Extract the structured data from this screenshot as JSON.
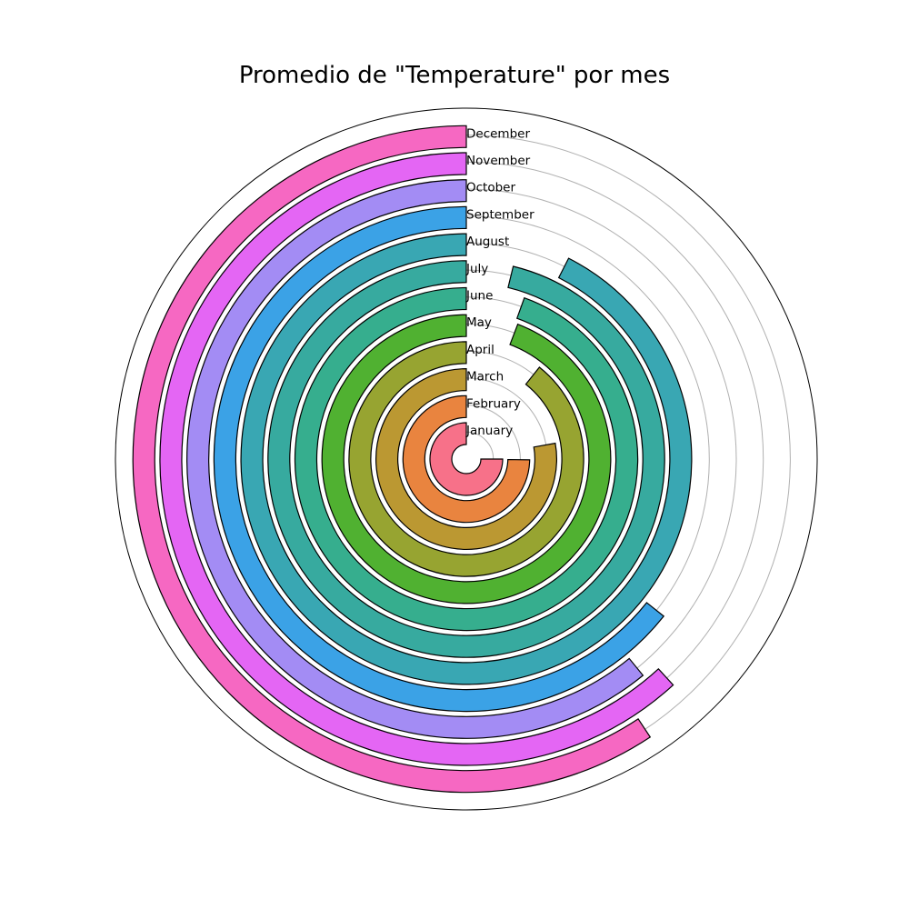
{
  "chart_data": {
    "type": "radial-bar",
    "title": "Promedio de \"Temperature\" por mes",
    "categories": [
      "January",
      "February",
      "March",
      "April",
      "May",
      "June",
      "July",
      "August",
      "September",
      "October",
      "November",
      "December"
    ],
    "series": [
      {
        "values": [
          0.75,
          0.748,
          0.778,
          0.893,
          0.942,
          1.055,
          1.038,
          1.075,
          1.357,
          1.391,
          1.382,
          1.407
        ],
        "unit": "fraction of full turn (clockwise from 12 o'clock)"
      }
    ],
    "colors": [
      "#f77189",
      "#e9843f",
      "#bb9832",
      "#97a431",
      "#50b131",
      "#36ae8e",
      "#37aa9f",
      "#39a7b3",
      "#3ba2e6",
      "#a38cf4",
      "#e466f4",
      "#f668c2"
    ],
    "grid": true,
    "angular_ticks": "hidden",
    "radial_ticks": "hidden"
  }
}
